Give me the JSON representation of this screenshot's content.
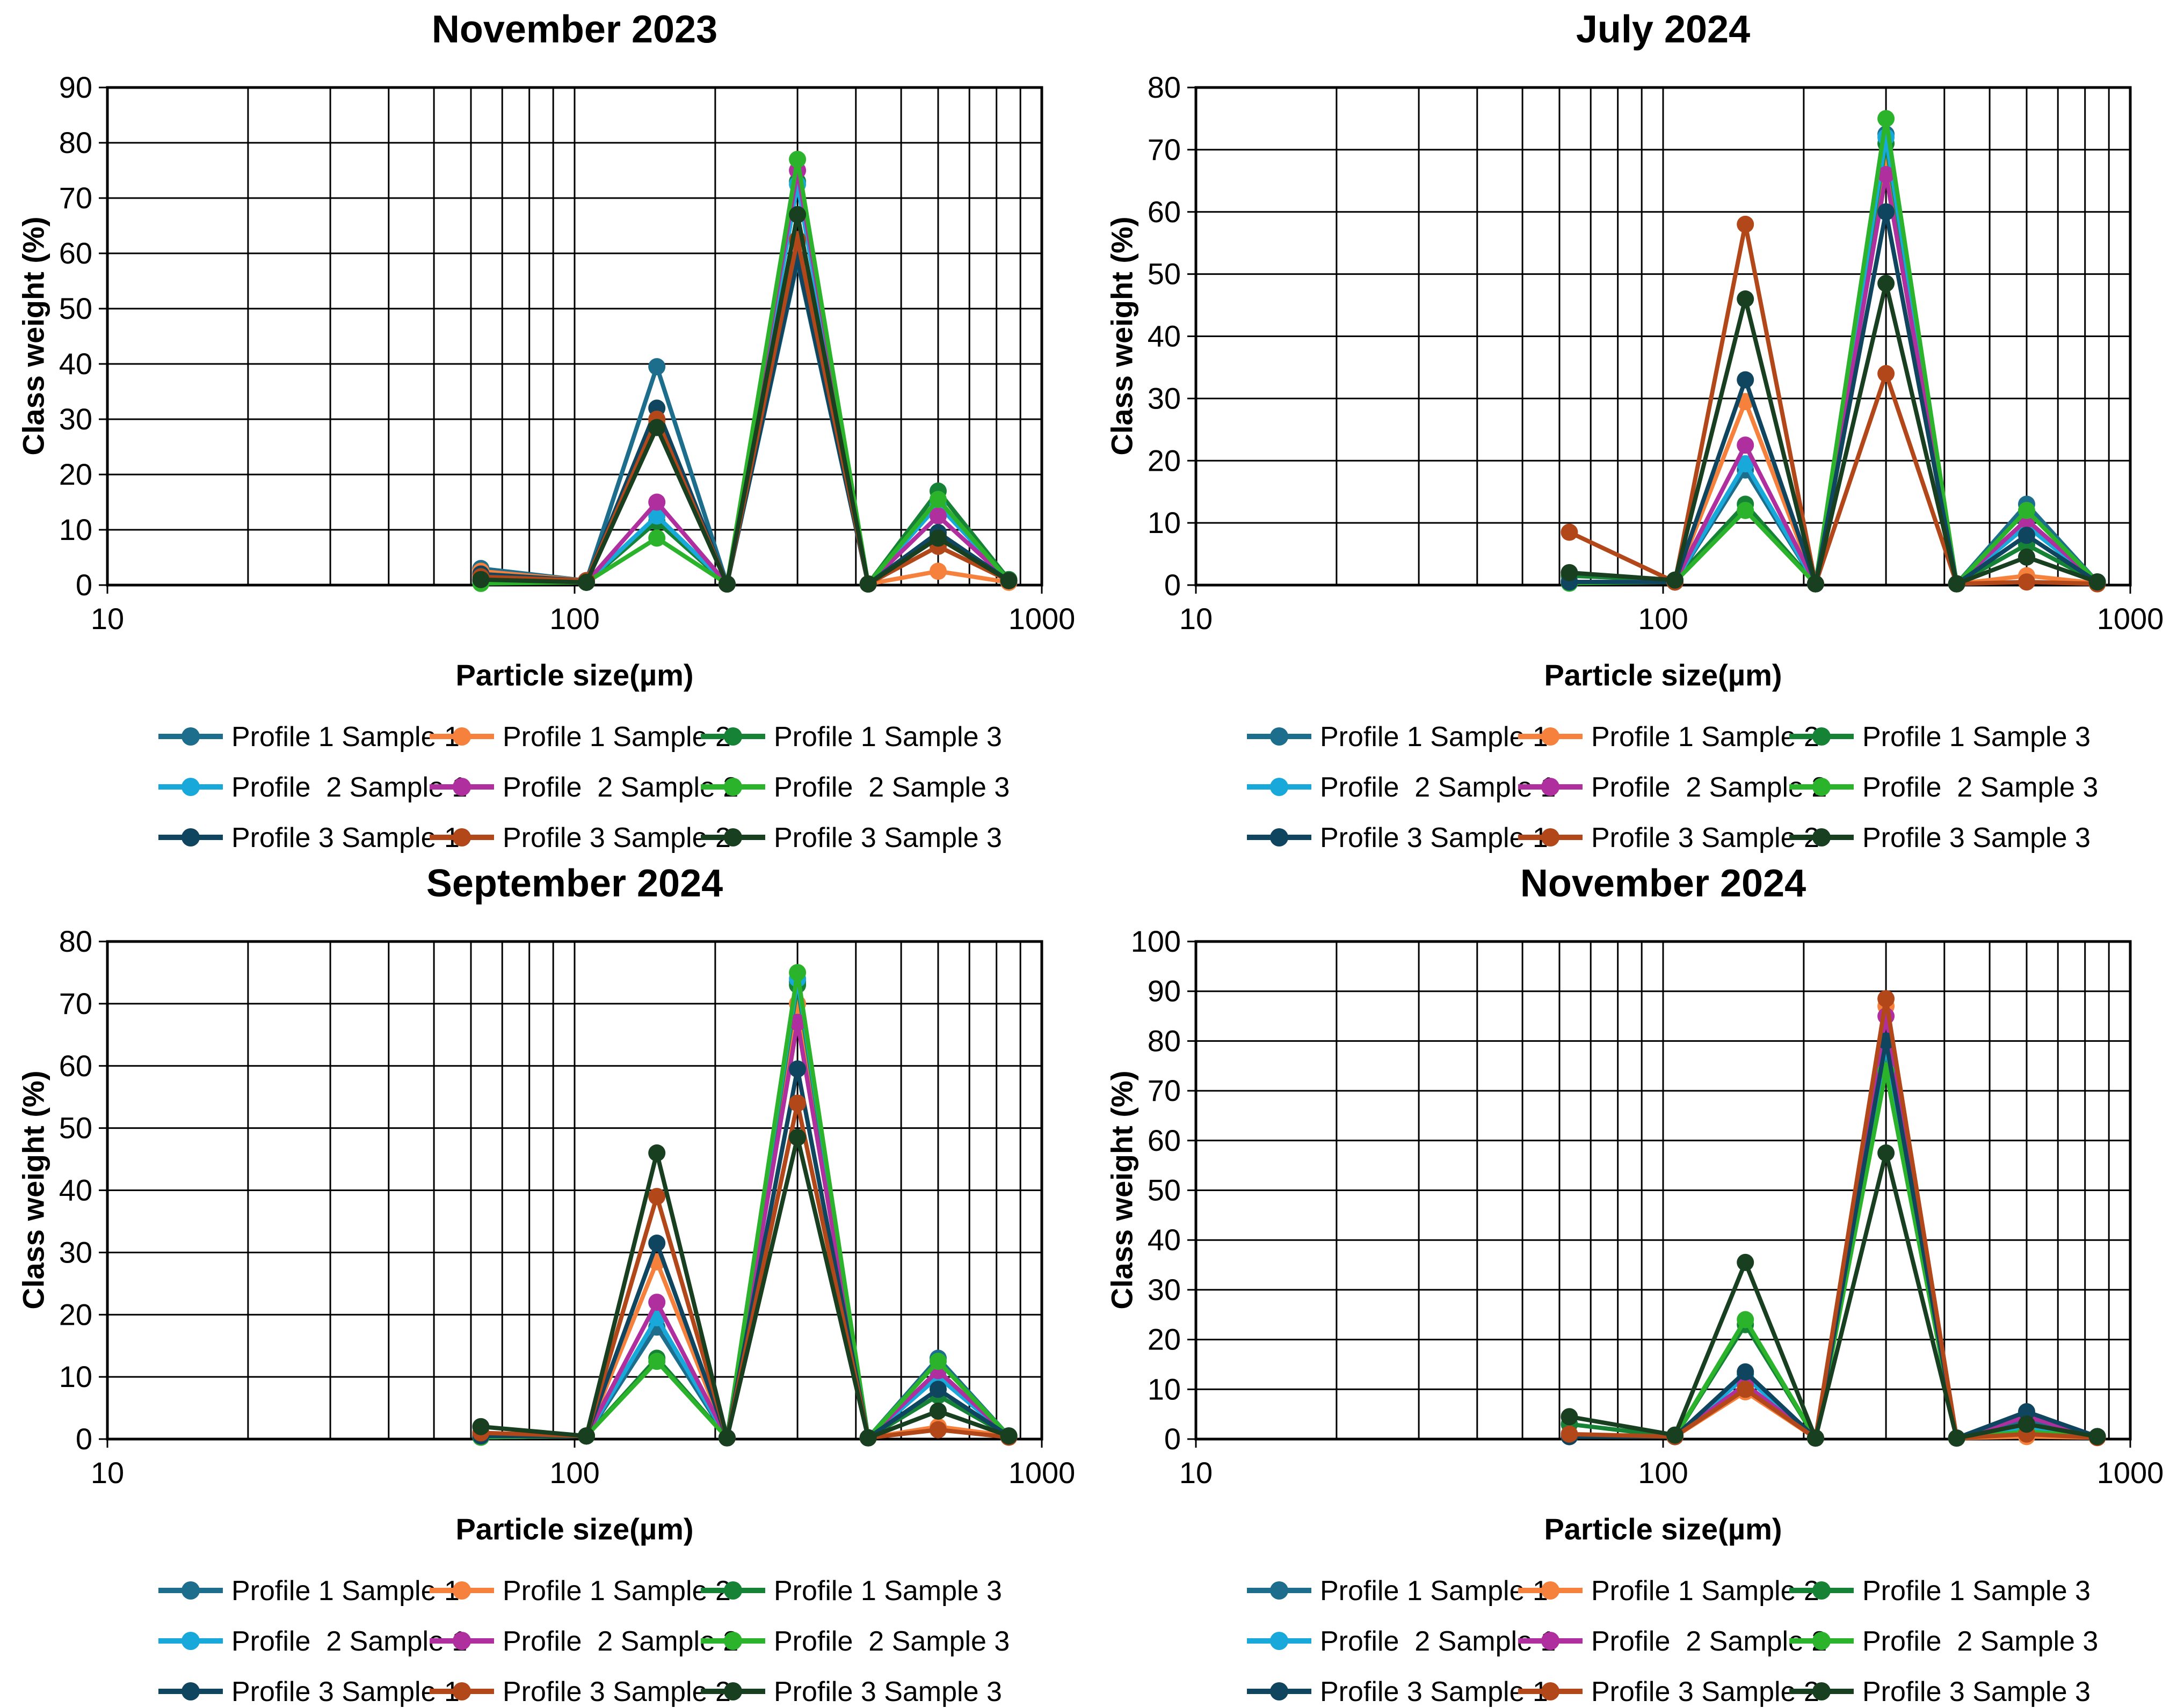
{
  "page": {
    "background": "#ffffff"
  },
  "chart_data": [
    {
      "type": "line",
      "title": "November 2023",
      "xlabel": "Particle size(µm)",
      "ylabel": "Class weight (%)",
      "xscale": "log",
      "xlim": [
        10,
        1000
      ],
      "ylim": [
        0,
        90
      ],
      "ytick_step": 10,
      "xticks": [
        10,
        100,
        1000
      ],
      "xtick_labels": [
        "10",
        "100",
        "1000"
      ],
      "grid": "on",
      "legend_position": "bottom",
      "x": [
        63,
        106,
        150,
        212,
        300,
        425,
        600,
        850
      ],
      "series": [
        {
          "name": "Profile 1 Sample 1",
          "color": "#1c6e8c",
          "values": [
            3,
            0.8,
            39.5,
            0.2,
            58.5,
            0.2,
            9,
            0.8
          ]
        },
        {
          "name": "Profile 1 Sample 2",
          "color": "#f5813d",
          "values": [
            2.5,
            0.8,
            29.5,
            0.2,
            62,
            0.2,
            2.5,
            0.5
          ]
        },
        {
          "name": "Profile 1 Sample 3",
          "color": "#168236",
          "values": [
            0.8,
            0.5,
            11.5,
            0.2,
            73,
            0.2,
            17,
            1
          ]
        },
        {
          "name": "Profile  2 Sample 1",
          "color": "#18a9da",
          "values": [
            0.5,
            0.5,
            12.5,
            0.2,
            72.5,
            0.2,
            14.5,
            0.8
          ]
        },
        {
          "name": "Profile  2 Sample 2",
          "color": "#b02f9e",
          "values": [
            0.5,
            0.5,
            15,
            0.2,
            75,
            0.2,
            12.5,
            0.8
          ]
        },
        {
          "name": "Profile  2 Sample 3",
          "color": "#2cb32c",
          "values": [
            0.3,
            0.5,
            8.5,
            0.2,
            77,
            0.2,
            15.5,
            0.8
          ]
        },
        {
          "name": "Profile 3 Sample 1",
          "color": "#10455f",
          "values": [
            2,
            0.8,
            32,
            0.2,
            59,
            0.2,
            9.5,
            0.8
          ]
        },
        {
          "name": "Profile 3 Sample 2",
          "color": "#b2471a",
          "values": [
            1.5,
            0.8,
            30,
            0.2,
            62.5,
            0.2,
            7,
            0.8
          ]
        },
        {
          "name": "Profile 3 Sample 3",
          "color": "#173f20",
          "values": [
            1,
            0.5,
            28.5,
            0.2,
            67,
            0.2,
            8.5,
            0.8
          ]
        }
      ]
    },
    {
      "type": "line",
      "title": "July 2024",
      "xlabel": "Particle size(µm)",
      "ylabel": "Class weight (%)",
      "xscale": "log",
      "xlim": [
        10,
        1000
      ],
      "ylim": [
        0,
        80
      ],
      "ytick_step": 10,
      "xticks": [
        10,
        100,
        1000
      ],
      "xtick_labels": [
        "10",
        "100",
        "1000"
      ],
      "grid": "on",
      "legend_position": "bottom",
      "x": [
        63,
        106,
        150,
        212,
        300,
        425,
        600,
        850
      ],
      "series": [
        {
          "name": "Profile 1 Sample 1",
          "color": "#1c6e8c",
          "values": [
            0.5,
            0.5,
            18.5,
            0.2,
            72.5,
            0.2,
            13,
            0.5
          ]
        },
        {
          "name": "Profile 1 Sample 2",
          "color": "#f5813d",
          "values": [
            0.5,
            0.5,
            29.5,
            0.2,
            68,
            0.2,
            1.5,
            0.3
          ]
        },
        {
          "name": "Profile 1 Sample 3",
          "color": "#168236",
          "values": [
            1.5,
            0.8,
            13,
            0.2,
            71,
            0.2,
            6.5,
            0.5
          ]
        },
        {
          "name": "Profile  2 Sample 1",
          "color": "#18a9da",
          "values": [
            0.5,
            0.5,
            19.5,
            0.2,
            72,
            0.2,
            9.5,
            0.5
          ]
        },
        {
          "name": "Profile  2 Sample 2",
          "color": "#b02f9e",
          "values": [
            0.5,
            0.5,
            22.5,
            0.2,
            66,
            0.2,
            10.5,
            0.5
          ]
        },
        {
          "name": "Profile  2 Sample 3",
          "color": "#2cb32c",
          "values": [
            0.3,
            0.5,
            12,
            0.2,
            75,
            0.2,
            12,
            0.5
          ]
        },
        {
          "name": "Profile 3 Sample 1",
          "color": "#10455f",
          "values": [
            0.5,
            0.5,
            33,
            0.2,
            60,
            0.2,
            8,
            0.5
          ]
        },
        {
          "name": "Profile 3 Sample 2",
          "color": "#b2471a",
          "values": [
            8.5,
            0.5,
            58,
            0.2,
            34,
            0.2,
            0.5,
            0.2
          ]
        },
        {
          "name": "Profile 3 Sample 3",
          "color": "#173f20",
          "values": [
            2,
            0.8,
            46,
            0.2,
            48.5,
            0.2,
            4.5,
            0.5
          ]
        }
      ]
    },
    {
      "type": "line",
      "title": "September 2024",
      "xlabel": "Particle size(µm)",
      "ylabel": "Class weight (%)",
      "xscale": "log",
      "xlim": [
        10,
        1000
      ],
      "ylim": [
        0,
        80
      ],
      "ytick_step": 10,
      "xticks": [
        10,
        100,
        1000
      ],
      "xtick_labels": [
        "10",
        "100",
        "1000"
      ],
      "grid": "on",
      "legend_position": "bottom",
      "x": [
        63,
        106,
        150,
        212,
        300,
        425,
        600,
        850
      ],
      "series": [
        {
          "name": "Profile 1 Sample 1",
          "color": "#1c6e8c",
          "values": [
            0.3,
            0.5,
            18,
            0.2,
            73.5,
            0.2,
            13,
            0.5
          ]
        },
        {
          "name": "Profile 1 Sample 2",
          "color": "#f5813d",
          "values": [
            0.5,
            0.5,
            28.5,
            0.2,
            70,
            0.2,
            2,
            0.5
          ]
        },
        {
          "name": "Profile 1 Sample 3",
          "color": "#168236",
          "values": [
            0.8,
            0.5,
            13,
            0.2,
            73,
            0.2,
            7,
            0.5
          ]
        },
        {
          "name": "Profile  2 Sample 1",
          "color": "#18a9da",
          "values": [
            0.3,
            0.5,
            19.5,
            0.2,
            74,
            0.2,
            10,
            0.5
          ]
        },
        {
          "name": "Profile  2 Sample 2",
          "color": "#b02f9e",
          "values": [
            0.3,
            0.5,
            22,
            0.2,
            67,
            0.2,
            11,
            0.5
          ]
        },
        {
          "name": "Profile  2 Sample 3",
          "color": "#2cb32c",
          "values": [
            0.3,
            0.5,
            12.5,
            0.2,
            75,
            0.2,
            12.5,
            0.5
          ]
        },
        {
          "name": "Profile 3 Sample 1",
          "color": "#10455f",
          "values": [
            0.5,
            0.5,
            31.5,
            0.2,
            59.5,
            0.2,
            8,
            0.5
          ]
        },
        {
          "name": "Profile 3 Sample 2",
          "color": "#b2471a",
          "values": [
            1,
            0.5,
            39,
            0.2,
            54,
            0.2,
            1.5,
            0.3
          ]
        },
        {
          "name": "Profile 3 Sample 3",
          "color": "#173f20",
          "values": [
            2,
            0.5,
            46,
            0.2,
            48.5,
            0.2,
            4.5,
            0.5
          ]
        }
      ]
    },
    {
      "type": "line",
      "title": "November 2024",
      "xlabel": "Particle size(µm)",
      "ylabel": "Class weight (%)",
      "xscale": "log",
      "xlim": [
        10,
        1000
      ],
      "ylim": [
        0,
        100
      ],
      "ytick_step": 10,
      "xticks": [
        10,
        100,
        1000
      ],
      "xtick_labels": [
        "10",
        "100",
        "1000"
      ],
      "grid": "on",
      "legend_position": "bottom",
      "x": [
        63,
        106,
        150,
        212,
        300,
        425,
        600,
        850
      ],
      "series": [
        {
          "name": "Profile 1 Sample 1",
          "color": "#1c6e8c",
          "values": [
            0.5,
            0.5,
            13,
            0.2,
            79.5,
            0.2,
            4,
            0.5
          ]
        },
        {
          "name": "Profile 1 Sample 2",
          "color": "#f5813d",
          "values": [
            0.5,
            0.5,
            9.5,
            0.2,
            87,
            0.2,
            0.5,
            0.3
          ]
        },
        {
          "name": "Profile 1 Sample 3",
          "color": "#168236",
          "values": [
            3,
            0.5,
            23,
            0.2,
            75,
            0.2,
            1.5,
            0.5
          ]
        },
        {
          "name": "Profile  2 Sample 1",
          "color": "#18a9da",
          "values": [
            0.5,
            0.5,
            12.5,
            0.2,
            79,
            0.2,
            2.5,
            0.5
          ]
        },
        {
          "name": "Profile  2 Sample 2",
          "color": "#b02f9e",
          "values": [
            0.5,
            0.5,
            11,
            0.2,
            85,
            0.2,
            4.5,
            0.5
          ]
        },
        {
          "name": "Profile  2 Sample 3",
          "color": "#2cb32c",
          "values": [
            0.5,
            0.5,
            24,
            0.2,
            74,
            0.2,
            1.5,
            0.5
          ]
        },
        {
          "name": "Profile 3 Sample 1",
          "color": "#10455f",
          "values": [
            0.5,
            0.5,
            13.5,
            0.2,
            80,
            0.2,
            5.5,
            0.5
          ]
        },
        {
          "name": "Profile 3 Sample 2",
          "color": "#b2471a",
          "values": [
            1,
            0.5,
            10,
            0.2,
            88.5,
            0.2,
            1,
            0.3
          ]
        },
        {
          "name": "Profile 3 Sample 3",
          "color": "#173f20",
          "values": [
            4.5,
            0.8,
            35.5,
            0.2,
            57.5,
            0.2,
            3,
            0.5
          ]
        }
      ]
    }
  ]
}
